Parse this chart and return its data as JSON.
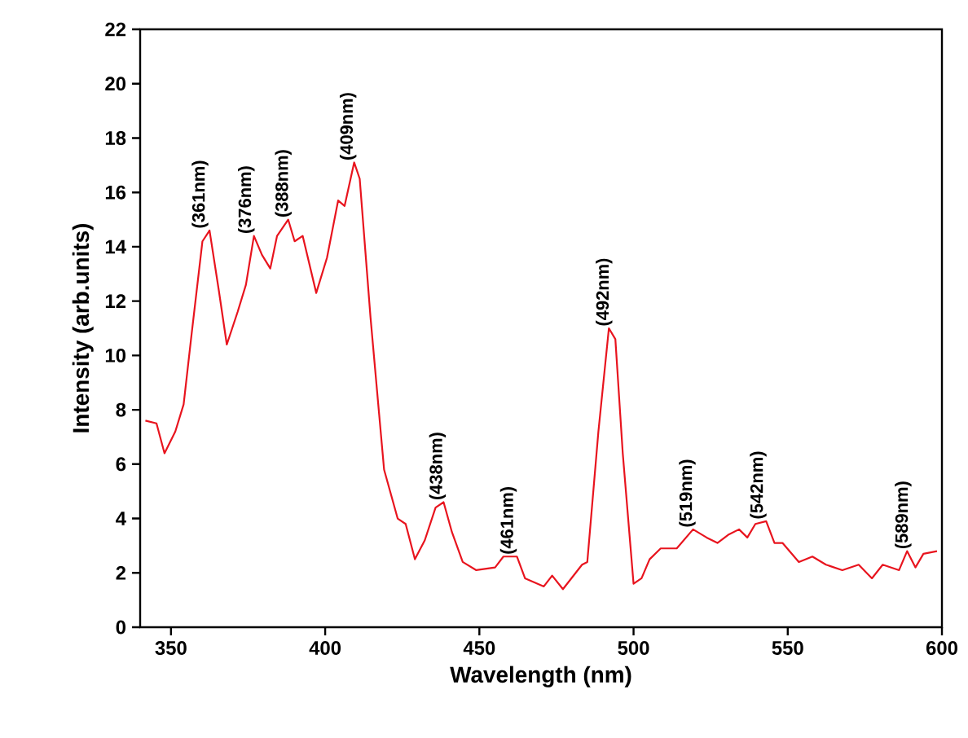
{
  "chart_data": {
    "type": "line",
    "xlabel": "Wavelength (nm)",
    "ylabel": "Intensity (arb.units)",
    "xlim": [
      340,
      600
    ],
    "ylim": [
      0,
      22
    ],
    "xticks": [
      350,
      400,
      450,
      500,
      550,
      600
    ],
    "yticks": [
      0,
      2,
      4,
      6,
      8,
      10,
      12,
      14,
      16,
      18,
      20,
      22
    ],
    "grid": false,
    "marker": "none",
    "line_style": "solid",
    "series": [
      {
        "color": "#e8141e",
        "x": [
          341.7,
          345.3,
          347.9,
          351.4,
          354.1,
          356.7,
          360.2,
          362.5,
          365.5,
          368.1,
          371.6,
          374.3,
          376.9,
          379.5,
          382.2,
          384.4,
          388,
          390.1,
          392.7,
          397.1,
          400.6,
          404.2,
          406.3,
          409.4,
          411.2,
          414.7,
          419.1,
          423.5,
          426.1,
          429.1,
          432.3,
          435.8,
          438.4,
          441.1,
          444.6,
          449,
          455.1,
          457.8,
          462.2,
          464.8,
          470.9,
          473.6,
          477.1,
          483.3,
          485,
          488.6,
          492,
          494.1,
          496.5,
          500,
          502.6,
          505.2,
          508.8,
          514,
          519.3,
          523.7,
          527.2,
          530.7,
          534.2,
          536.9,
          539.5,
          543,
          545.7,
          548.3,
          553.6,
          558,
          562.4,
          567.7,
          573,
          577.3,
          580.8,
          586.1,
          588.7,
          591.4,
          594,
          598.4
        ],
        "values": [
          7.6,
          7.5,
          6.4,
          7.2,
          8.2,
          10.8,
          14.2,
          14.6,
          12.4,
          10.4,
          11.6,
          12.6,
          14.4,
          13.7,
          13.2,
          14.4,
          15.0,
          14.2,
          14.4,
          12.3,
          13.6,
          15.7,
          15.5,
          17.1,
          16.5,
          11.4,
          5.8,
          4.0,
          3.8,
          2.5,
          3.2,
          4.4,
          4.6,
          3.5,
          2.4,
          2.1,
          2.2,
          2.6,
          2.6,
          1.8,
          1.5,
          1.9,
          1.4,
          2.3,
          2.4,
          7.2,
          11.0,
          10.6,
          6.4,
          1.6,
          1.8,
          2.5,
          2.9,
          2.9,
          3.6,
          3.3,
          3.1,
          3.4,
          3.6,
          3.3,
          3.8,
          3.9,
          3.1,
          3.1,
          2.4,
          2.6,
          2.3,
          2.1,
          2.3,
          1.8,
          2.3,
          2.1,
          2.8,
          2.2,
          2.7,
          2.8
        ]
      }
    ],
    "annotations": [
      {
        "text": "(361nm)",
        "x": 361,
        "y": 14.6
      },
      {
        "text": "(376nm)",
        "x": 376,
        "y": 14.4
      },
      {
        "text": "(388nm)",
        "x": 388,
        "y": 15.0
      },
      {
        "text": "(409nm)",
        "x": 409,
        "y": 17.1
      },
      {
        "text": "(438nm)",
        "x": 438,
        "y": 4.6
      },
      {
        "text": "(461nm)",
        "x": 461,
        "y": 2.6
      },
      {
        "text": "(492nm)",
        "x": 492,
        "y": 11.0
      },
      {
        "text": "(519nm)",
        "x": 519,
        "y": 3.6
      },
      {
        "text": "(542nm)",
        "x": 542,
        "y": 3.9
      },
      {
        "text": "(589nm)",
        "x": 589,
        "y": 2.8
      }
    ]
  }
}
